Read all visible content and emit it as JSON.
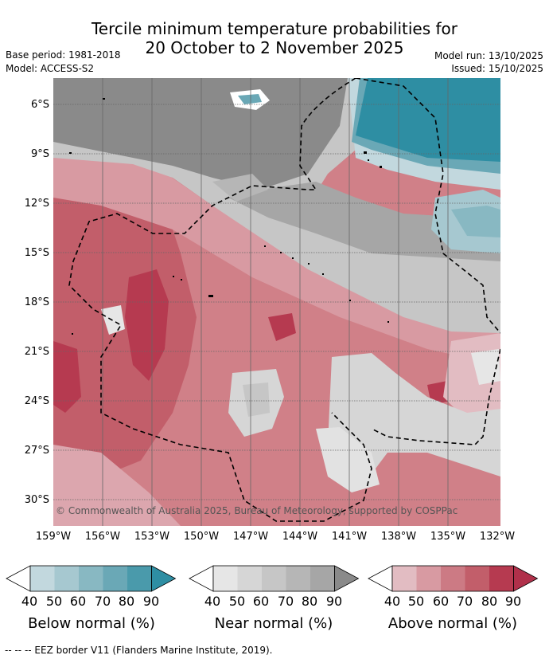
{
  "title_line1": "Tercile minimum temperature probabilities for",
  "title_line2": "20 October to 2 November 2025",
  "base_period": "Base period: 1981-2018",
  "model": "Model: ACCESS-S2",
  "model_run": "Model run: 13/10/2025",
  "issued": "Issued: 15/10/2025",
  "lat_labels": [
    "6°S",
    "9°S",
    "12°S",
    "15°S",
    "18°S",
    "21°S",
    "24°S",
    "27°S",
    "30°S"
  ],
  "lon_labels": [
    "159°W",
    "156°W",
    "153°W",
    "150°W",
    "147°W",
    "144°W",
    "141°W",
    "138°W",
    "135°W",
    "132°W"
  ],
  "copyright": "© Commonwealth of Australia 2025, Bureau of Meteorology, supported by COSPPac",
  "colorbars": [
    {
      "title": "Below normal (%)",
      "ticks": [
        "40",
        "50",
        "60",
        "70",
        "80",
        "90"
      ],
      "colors": [
        "#c2d8de",
        "#a6c8d0",
        "#88b8c2",
        "#6aa8b6",
        "#4a9aab",
        "#2e8ea3"
      ]
    },
    {
      "title": "Near normal (%)",
      "ticks": [
        "40",
        "50",
        "60",
        "70",
        "80",
        "90"
      ],
      "colors": [
        "#e6e6e6",
        "#d6d6d6",
        "#c6c6c6",
        "#b6b6b6",
        "#a6a6a6",
        "#8a8a8a"
      ]
    },
    {
      "title": "Above normal (%)",
      "ticks": [
        "40",
        "50",
        "60",
        "70",
        "80",
        "90"
      ],
      "colors": [
        "#e2bcc2",
        "#d89aa2",
        "#cc7a84",
        "#c25e6a",
        "#b63a50",
        "#b0304a"
      ]
    }
  ],
  "footer": "--  --  -- EEZ border V11 (Flanders Marine Institute, 2019)."
}
